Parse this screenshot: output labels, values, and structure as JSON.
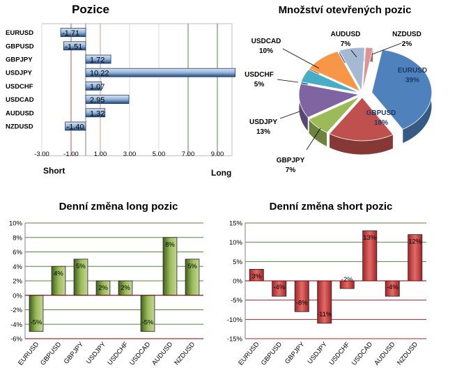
{
  "chart_data": [
    {
      "type": "bar",
      "orientation": "horizontal",
      "title": "Pozice",
      "categories": [
        "EURUSD",
        "GBPUSD",
        "GBPJPY",
        "USDJPY",
        "USDCHF",
        "USDCAD",
        "AUDUSD",
        "NZDUSD"
      ],
      "values": [
        -1.71,
        -1.51,
        1.72,
        10.22,
        1.07,
        2.95,
        1.32,
        -1.4
      ],
      "value_labels": [
        "-1.71",
        "-1.51",
        "1.72",
        "10.22",
        "1.07",
        "2.95",
        "1.32",
        "-1.40"
      ],
      "xlim": [
        -3,
        10
      ],
      "ticks": [
        -3,
        -1,
        1,
        3,
        5,
        7,
        9
      ],
      "tick_labels": [
        "-3.00",
        "-1.00",
        "1.00",
        "3.00",
        "5.00",
        "7.00",
        "9.00"
      ],
      "xlabel_left": "Short",
      "xlabel_right": "Long",
      "colors": {
        "bar": "#4f81bd",
        "bar_light": "#dbe5f1",
        "red_line": "#c0504d",
        "green_line": "#4f8a3c"
      }
    },
    {
      "type": "pie",
      "title": "Množství otevřených pozic",
      "slices": [
        {
          "label": "EURUSD",
          "value": 39,
          "pct": "39%",
          "color": "#4f81bd"
        },
        {
          "label": "GBPUSD",
          "value": 18,
          "pct": "18%",
          "color": "#c0504d"
        },
        {
          "label": "GBPJPY",
          "value": 7,
          "pct": "7%",
          "color": "#9bbb59"
        },
        {
          "label": "USDJPY",
          "value": 13,
          "pct": "13%",
          "color": "#8064a2"
        },
        {
          "label": "USDCHF",
          "value": 5,
          "pct": "5%",
          "color": "#4bacc6"
        },
        {
          "label": "USDCAD",
          "value": 10,
          "pct": "10%",
          "color": "#f79646"
        },
        {
          "label": "AUDUSD",
          "value": 7,
          "pct": "7%",
          "color": "#a5b8d4"
        },
        {
          "label": "NZDUSD",
          "value": 2,
          "pct": "2%",
          "color": "#d99694"
        }
      ]
    },
    {
      "type": "bar",
      "title": "Denní změna long pozic",
      "categories": [
        "EURUSD",
        "GBPUSD",
        "GBPJPY",
        "USDJPY",
        "USDCHF",
        "USDCAD",
        "AUDUSD",
        "NZDUSD"
      ],
      "values": [
        -5,
        4,
        5,
        2,
        2,
        -5,
        8,
        5
      ],
      "value_labels": [
        "-5%",
        "4%",
        "5%",
        "2%",
        "2%",
        "-5%",
        "8%",
        "5%"
      ],
      "ylim": [
        -6,
        10
      ],
      "ticks": [
        -6,
        -4,
        -2,
        0,
        2,
        4,
        6,
        8,
        10
      ],
      "tick_labels": [
        "-6%",
        "-4%",
        "-2%",
        "0%",
        "2%",
        "4%",
        "6%",
        "8%",
        "10%"
      ],
      "colors": {
        "bar_dark": "#3f5f1f",
        "bar_light": "#c4d79b",
        "grid": "#4f8a3c",
        "axis": "#800000"
      }
    },
    {
      "type": "bar",
      "title": "Denní změna short pozic",
      "categories": [
        "EURUSD",
        "GBPUSD",
        "GBPJPY",
        "USDJPY",
        "USDCHF",
        "USDCAD",
        "AUDUSD",
        "NZDUSD"
      ],
      "values": [
        3,
        -4,
        -8,
        -11,
        -2,
        13,
        -4,
        12
      ],
      "value_labels": [
        "3%",
        "-4%",
        "-8%",
        "-11%",
        "-2%",
        "13%",
        "-4%",
        "12%"
      ],
      "ylim": [
        -15,
        15
      ],
      "ticks": [
        -15,
        -10,
        -5,
        0,
        5,
        10,
        15
      ],
      "tick_labels": [
        "-15%",
        "-10%",
        "-5%",
        "0%",
        "5%",
        "10%",
        "15%"
      ],
      "colors": {
        "bar_dark": "#a0262a",
        "bar_light": "#e26b67",
        "grid_pos": "#4f8a3c",
        "grid_neg": "#a0262a",
        "axis": "#800000"
      }
    }
  ]
}
